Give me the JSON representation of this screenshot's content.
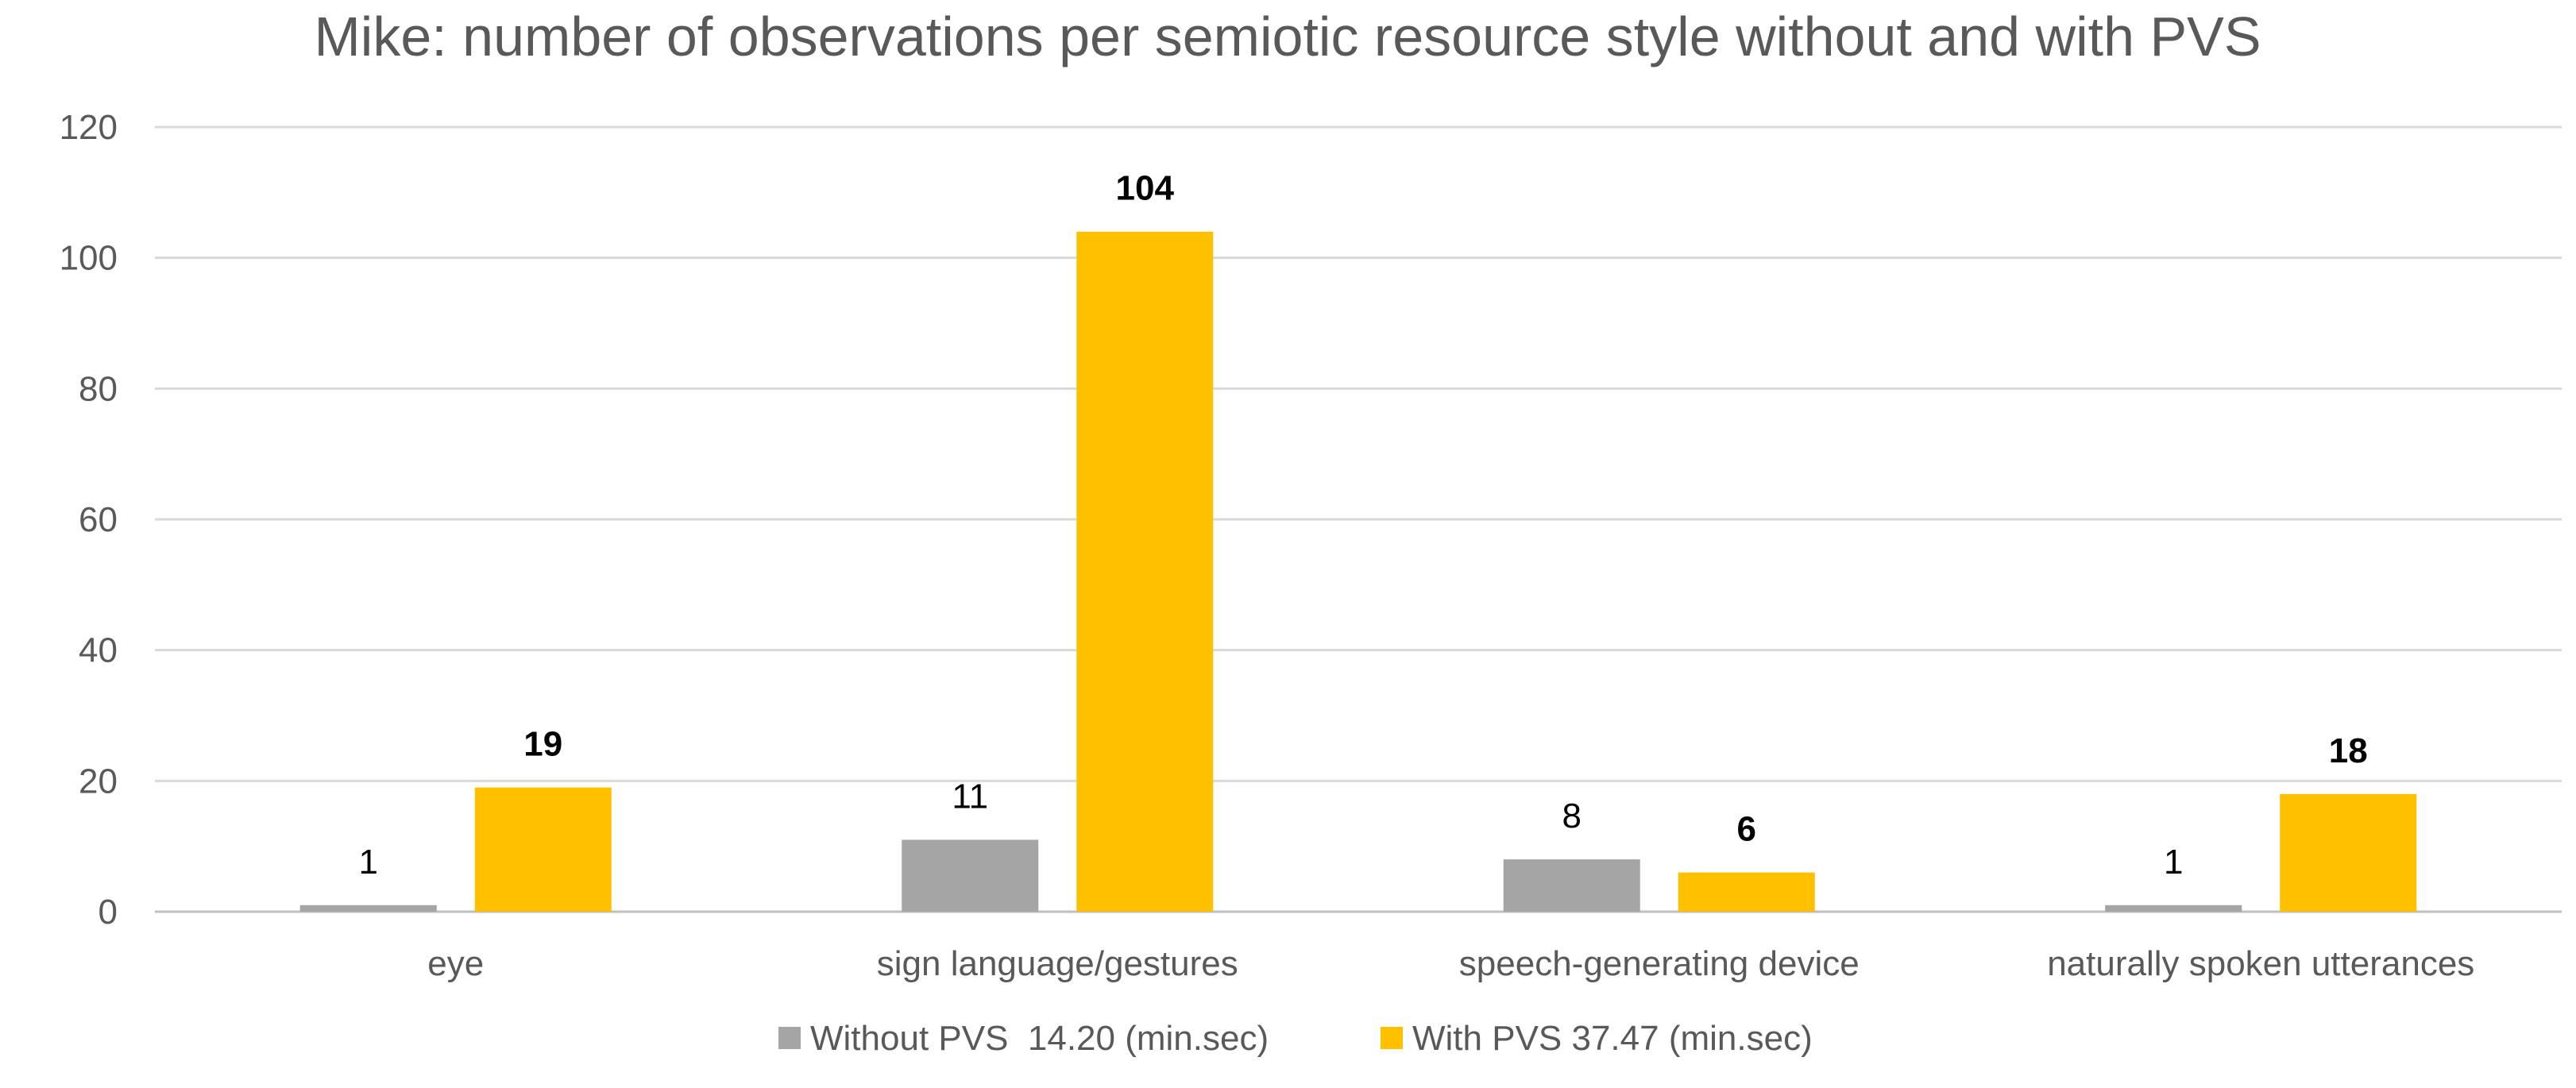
{
  "chart_data": {
    "type": "bar",
    "title": "Mike: number of observations per semiotic resource style without and with PVS",
    "categories": [
      "eye",
      "sign language/gestures",
      "speech-generating device",
      "naturally spoken utterances"
    ],
    "series": [
      {
        "name": "Without PVS  14.20 (min.sec)",
        "values": [
          1,
          11,
          8,
          1
        ],
        "color": "#a5a5a5",
        "label_bold": false
      },
      {
        "name": "With PVS 37.47 (min.sec)",
        "values": [
          19,
          104,
          6,
          18
        ],
        "color": "#ffc000",
        "label_bold": true
      }
    ],
    "xlabel": "",
    "ylabel": "",
    "ylim": [
      0,
      120
    ],
    "yticks": [
      0,
      20,
      40,
      60,
      80,
      100,
      120
    ],
    "grid": true,
    "gridline_color": "#d9d9d9",
    "legend_position": "bottom"
  }
}
